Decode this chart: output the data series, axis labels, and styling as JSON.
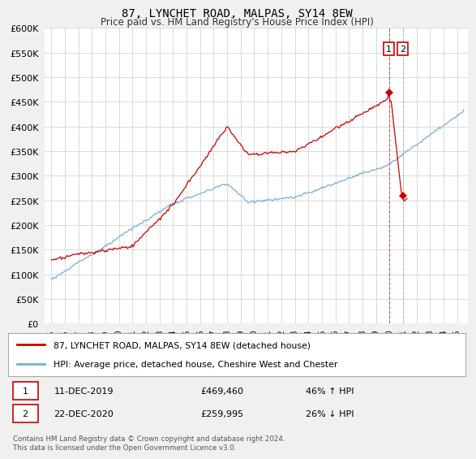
{
  "title": "87, LYNCHET ROAD, MALPAS, SY14 8EW",
  "subtitle": "Price paid vs. HM Land Registry's House Price Index (HPI)",
  "legend_line1": "87, LYNCHET ROAD, MALPAS, SY14 8EW (detached house)",
  "legend_line2": "HPI: Average price, detached house, Cheshire West and Chester",
  "annotation1_date": "11-DEC-2019",
  "annotation1_price": "£469,460",
  "annotation1_hpi": "46% ↑ HPI",
  "annotation2_date": "22-DEC-2020",
  "annotation2_price": "£259,995",
  "annotation2_hpi": "26% ↓ HPI",
  "footer": "Contains HM Land Registry data © Crown copyright and database right 2024.\nThis data is licensed under the Open Government Licence v3.0.",
  "price_color": "#cc0000",
  "hpi_color": "#7aadd4",
  "background_color": "#f0f0f0",
  "plot_bg_color": "#ffffff",
  "ylim": [
    0,
    600000
  ],
  "yticks": [
    0,
    50000,
    100000,
    150000,
    200000,
    250000,
    300000,
    350000,
    400000,
    450000,
    500000,
    550000,
    600000
  ],
  "xlim_start": 1994.5,
  "xlim_end": 2025.8,
  "t1": 2019.96,
  "p1": 469460,
  "t2": 2020.98,
  "p2": 259995
}
